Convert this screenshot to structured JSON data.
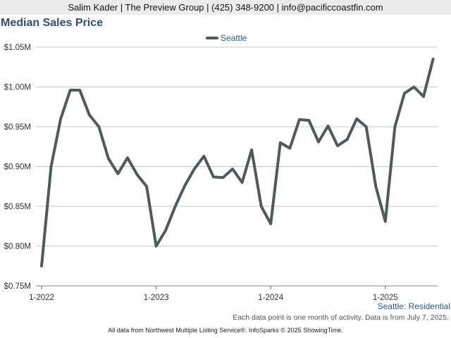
{
  "header": {
    "contact": "Salim Kader | The Preview Group | (425) 348-9200 | info@pacificcoastfin.com"
  },
  "chart_data": {
    "type": "line",
    "title": "Median Sales Price",
    "xlabel": "",
    "ylabel": "",
    "legend_position": "top-center",
    "grid": true,
    "ylim": [
      750000,
      1050000
    ],
    "y_ticks": [
      {
        "value": 750000,
        "label": "$0.75M"
      },
      {
        "value": 800000,
        "label": "$0.80M"
      },
      {
        "value": 850000,
        "label": "$0.85M"
      },
      {
        "value": 900000,
        "label": "$0.90M"
      },
      {
        "value": 950000,
        "label": "$0.95M"
      },
      {
        "value": 1000000,
        "label": "$1.00M"
      },
      {
        "value": 1050000,
        "label": "$1.05M"
      }
    ],
    "x_ticks": [
      {
        "index": 0,
        "label": "1-2022"
      },
      {
        "index": 12,
        "label": "1-2023"
      },
      {
        "index": 24,
        "label": "1-2024"
      },
      {
        "index": 36,
        "label": "1-2025"
      }
    ],
    "x": [
      "2022-01",
      "2022-02",
      "2022-03",
      "2022-04",
      "2022-05",
      "2022-06",
      "2022-07",
      "2022-08",
      "2022-09",
      "2022-10",
      "2022-11",
      "2022-12",
      "2023-01",
      "2023-02",
      "2023-03",
      "2023-04",
      "2023-05",
      "2023-06",
      "2023-07",
      "2023-08",
      "2023-09",
      "2023-10",
      "2023-11",
      "2023-12",
      "2024-01",
      "2024-02",
      "2024-03",
      "2024-04",
      "2024-05",
      "2024-06",
      "2024-07",
      "2024-08",
      "2024-09",
      "2024-10",
      "2024-11",
      "2024-12",
      "2025-01",
      "2025-02",
      "2025-03",
      "2025-04",
      "2025-05",
      "2025-06"
    ],
    "series": [
      {
        "name": "Seattle",
        "color": "#515a5a",
        "values": [
          775000,
          900000,
          960000,
          996000,
          996000,
          965000,
          950000,
          910000,
          891000,
          911000,
          890000,
          875000,
          800000,
          820000,
          850000,
          876000,
          897000,
          913000,
          887000,
          886000,
          897000,
          880000,
          921000,
          850000,
          828000,
          930000,
          923000,
          959000,
          958000,
          931000,
          951000,
          926000,
          934000,
          960000,
          950000,
          875000,
          831000,
          950000,
          992000,
          1000000,
          988000,
          1035000
        ]
      }
    ]
  },
  "footer": {
    "series_label": "Seattle: Residential",
    "note": "Each data point is one month of activity. Data is from July 7, 2025.",
    "credit": "All data from Northwest Multiple Listing Service®. InfoSparks © 2025 ShowingTime."
  }
}
